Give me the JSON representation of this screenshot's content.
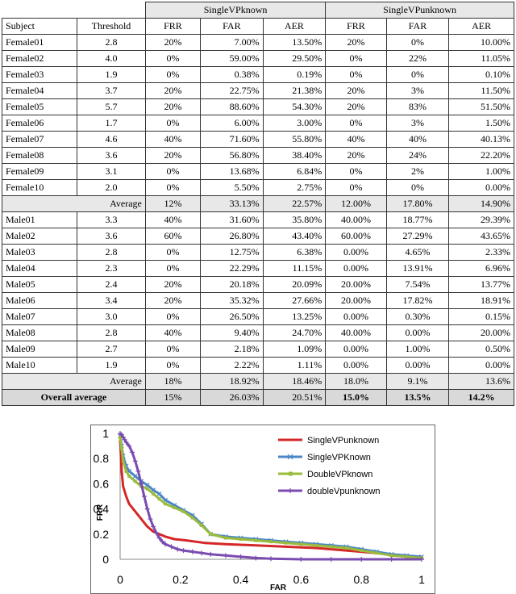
{
  "table": {
    "group_headers": [
      "SingleVPknown",
      "SingleVPunknown"
    ],
    "col_headers": [
      "Subject",
      "Threshold",
      "FRR",
      "FAR",
      "AER",
      "FRR",
      "FAR",
      "AER"
    ],
    "female_rows": [
      [
        "Female01",
        "2.8",
        "20%",
        "7.00%",
        "13.50%",
        "20%",
        "0%",
        "10.00%"
      ],
      [
        "Female02",
        "4.0",
        "0%",
        "59.00%",
        "29.50%",
        "0%",
        "22%",
        "11.05%"
      ],
      [
        "Female03",
        "1.9",
        "0%",
        "0.38%",
        "0.19%",
        "0%",
        "0%",
        "0.10%"
      ],
      [
        "Female04",
        "3.7",
        "20%",
        "22.75%",
        "21.38%",
        "20%",
        "3%",
        "11.50%"
      ],
      [
        "Female05",
        "5.7",
        "20%",
        "88.60%",
        "54.30%",
        "20%",
        "83%",
        "51.50%"
      ],
      [
        "Female06",
        "1.7",
        "0%",
        "6.00%",
        "3.00%",
        "0%",
        "3%",
        "1.50%"
      ],
      [
        "Female07",
        "4.6",
        "40%",
        "71.60%",
        "55.80%",
        "40%",
        "40%",
        "40.13%"
      ],
      [
        "Female08",
        "3.6",
        "20%",
        "56.80%",
        "38.40%",
        "20%",
        "24%",
        "22.20%"
      ],
      [
        "Female09",
        "3.1",
        "0%",
        "13.68%",
        "6.84%",
        "0%",
        "2%",
        "1.00%"
      ],
      [
        "Female10",
        "2.0",
        "0%",
        "5.50%",
        "2.75%",
        "0%",
        "0%",
        "0.00%"
      ]
    ],
    "female_average": [
      "Average",
      "12%",
      "33.13%",
      "22.57%",
      "12.00%",
      "17.80%",
      "14.90%"
    ],
    "male_rows": [
      [
        "Male01",
        "3.3",
        "40%",
        "31.60%",
        "35.80%",
        "40.00%",
        "18.77%",
        "29.39%"
      ],
      [
        "Male02",
        "3.6",
        "60%",
        "26.80%",
        "43.40%",
        "60.00%",
        "27.29%",
        "43.65%"
      ],
      [
        "Male03",
        "2.8",
        "0%",
        "12.75%",
        "6.38%",
        "0.00%",
        "4.65%",
        "2.33%"
      ],
      [
        "Male04",
        "2.3",
        "0%",
        "22.29%",
        "11.15%",
        "0.00%",
        "13.91%",
        "6.96%"
      ],
      [
        "Male05",
        "2.4",
        "20%",
        "20.18%",
        "20.09%",
        "20.00%",
        "7.54%",
        "13.77%"
      ],
      [
        "Male06",
        "3.4",
        "20%",
        "35.32%",
        "27.66%",
        "20.00%",
        "17.82%",
        "18.91%"
      ],
      [
        "Male07",
        "3.0",
        "0%",
        "26.50%",
        "13.25%",
        "0.00%",
        "0.30%",
        "0.15%"
      ],
      [
        "Male08",
        "2.8",
        "40%",
        "9.40%",
        "24.70%",
        "40.00%",
        "0.00%",
        "20.00%"
      ],
      [
        "Male09",
        "2.7",
        "0%",
        "2.18%",
        "1.09%",
        "0.00%",
        "1.00%",
        "0.50%"
      ],
      [
        "Male10",
        "1.9",
        "0%",
        "2.22%",
        "1.11%",
        "0.00%",
        "0.00%",
        "0.00%"
      ]
    ],
    "male_average": [
      "Average",
      "18%",
      "18.92%",
      "18.46%",
      "18.0%",
      "9.1%",
      "13.6%"
    ],
    "overall_average": [
      "Overall average",
      "15%",
      "26.03%",
      "20.51%",
      "15.0%",
      "13.5%",
      "14.2%"
    ]
  },
  "chart_data": {
    "type": "line",
    "xlabel": "FAR",
    "ylabel": "FRR",
    "xlim": [
      0,
      1
    ],
    "ylim": [
      0,
      1
    ],
    "xticks": [
      "0",
      "0.2",
      "0.4",
      "0.6",
      "0.8",
      "1"
    ],
    "yticks": [
      "0",
      "0.2",
      "0.4",
      "0.6",
      "0.8",
      "1"
    ],
    "legend_position": "top-right",
    "series": [
      {
        "name": "SingleVPunknown",
        "color": "#d62728",
        "marker": "none",
        "x": [
          0,
          0.005,
          0.01,
          0.02,
          0.03,
          0.05,
          0.07,
          0.09,
          0.11,
          0.13,
          0.15,
          0.18,
          0.22,
          0.28,
          0.35,
          0.45,
          0.55,
          0.65,
          0.75,
          0.85,
          0.92,
          0.97,
          1.0
        ],
        "y": [
          0.95,
          0.7,
          0.58,
          0.5,
          0.44,
          0.38,
          0.32,
          0.26,
          0.22,
          0.2,
          0.18,
          0.16,
          0.15,
          0.13,
          0.12,
          0.11,
          0.1,
          0.09,
          0.07,
          0.05,
          0.03,
          0.02,
          0.01
        ]
      },
      {
        "name": "SingleVPKnown",
        "color": "#4a86c8",
        "marker": "x",
        "x": [
          0,
          0.005,
          0.01,
          0.02,
          0.03,
          0.05,
          0.07,
          0.09,
          0.11,
          0.13,
          0.15,
          0.18,
          0.21,
          0.24,
          0.27,
          0.3,
          0.35,
          0.4,
          0.45,
          0.5,
          0.55,
          0.6,
          0.65,
          0.7,
          0.75,
          0.8,
          0.85,
          0.9,
          0.95,
          1.0
        ],
        "y": [
          0.98,
          0.9,
          0.82,
          0.74,
          0.7,
          0.66,
          0.62,
          0.59,
          0.55,
          0.52,
          0.47,
          0.43,
          0.39,
          0.35,
          0.28,
          0.2,
          0.18,
          0.17,
          0.16,
          0.15,
          0.14,
          0.13,
          0.12,
          0.11,
          0.1,
          0.08,
          0.06,
          0.04,
          0.03,
          0.02
        ]
      },
      {
        "name": "DoubleVPknown",
        "color": "#9bbb3c",
        "marker": "square",
        "x": [
          0,
          0.005,
          0.01,
          0.02,
          0.03,
          0.05,
          0.07,
          0.09,
          0.11,
          0.13,
          0.15,
          0.18,
          0.21,
          0.24,
          0.27,
          0.3,
          0.35,
          0.4,
          0.45,
          0.5,
          0.55,
          0.6,
          0.65,
          0.7,
          0.75,
          0.8,
          0.85,
          0.9,
          0.95,
          1.0
        ],
        "y": [
          0.97,
          0.88,
          0.78,
          0.7,
          0.66,
          0.62,
          0.58,
          0.56,
          0.52,
          0.48,
          0.44,
          0.41,
          0.38,
          0.33,
          0.27,
          0.2,
          0.17,
          0.16,
          0.15,
          0.14,
          0.13,
          0.12,
          0.11,
          0.1,
          0.09,
          0.07,
          0.05,
          0.03,
          0.02,
          0.01
        ]
      },
      {
        "name": "doubleVpunknown",
        "color": "#7a4bb0",
        "marker": "plus",
        "x": [
          0,
          0.005,
          0.01,
          0.015,
          0.02,
          0.03,
          0.04,
          0.05,
          0.06,
          0.07,
          0.08,
          0.09,
          0.1,
          0.11,
          0.12,
          0.13,
          0.14,
          0.15,
          0.17,
          0.19,
          0.21,
          0.24,
          0.27,
          0.3,
          0.35,
          0.4,
          0.45,
          0.5,
          0.6,
          0.7,
          0.8,
          0.9,
          1.0
        ],
        "y": [
          1.0,
          0.99,
          0.97,
          0.95,
          0.93,
          0.9,
          0.85,
          0.78,
          0.7,
          0.6,
          0.5,
          0.4,
          0.32,
          0.26,
          0.21,
          0.17,
          0.14,
          0.12,
          0.1,
          0.08,
          0.07,
          0.06,
          0.05,
          0.04,
          0.03,
          0.02,
          0.01,
          0.005,
          0.0,
          0.0,
          0.0,
          0.0,
          0.0
        ]
      }
    ]
  }
}
